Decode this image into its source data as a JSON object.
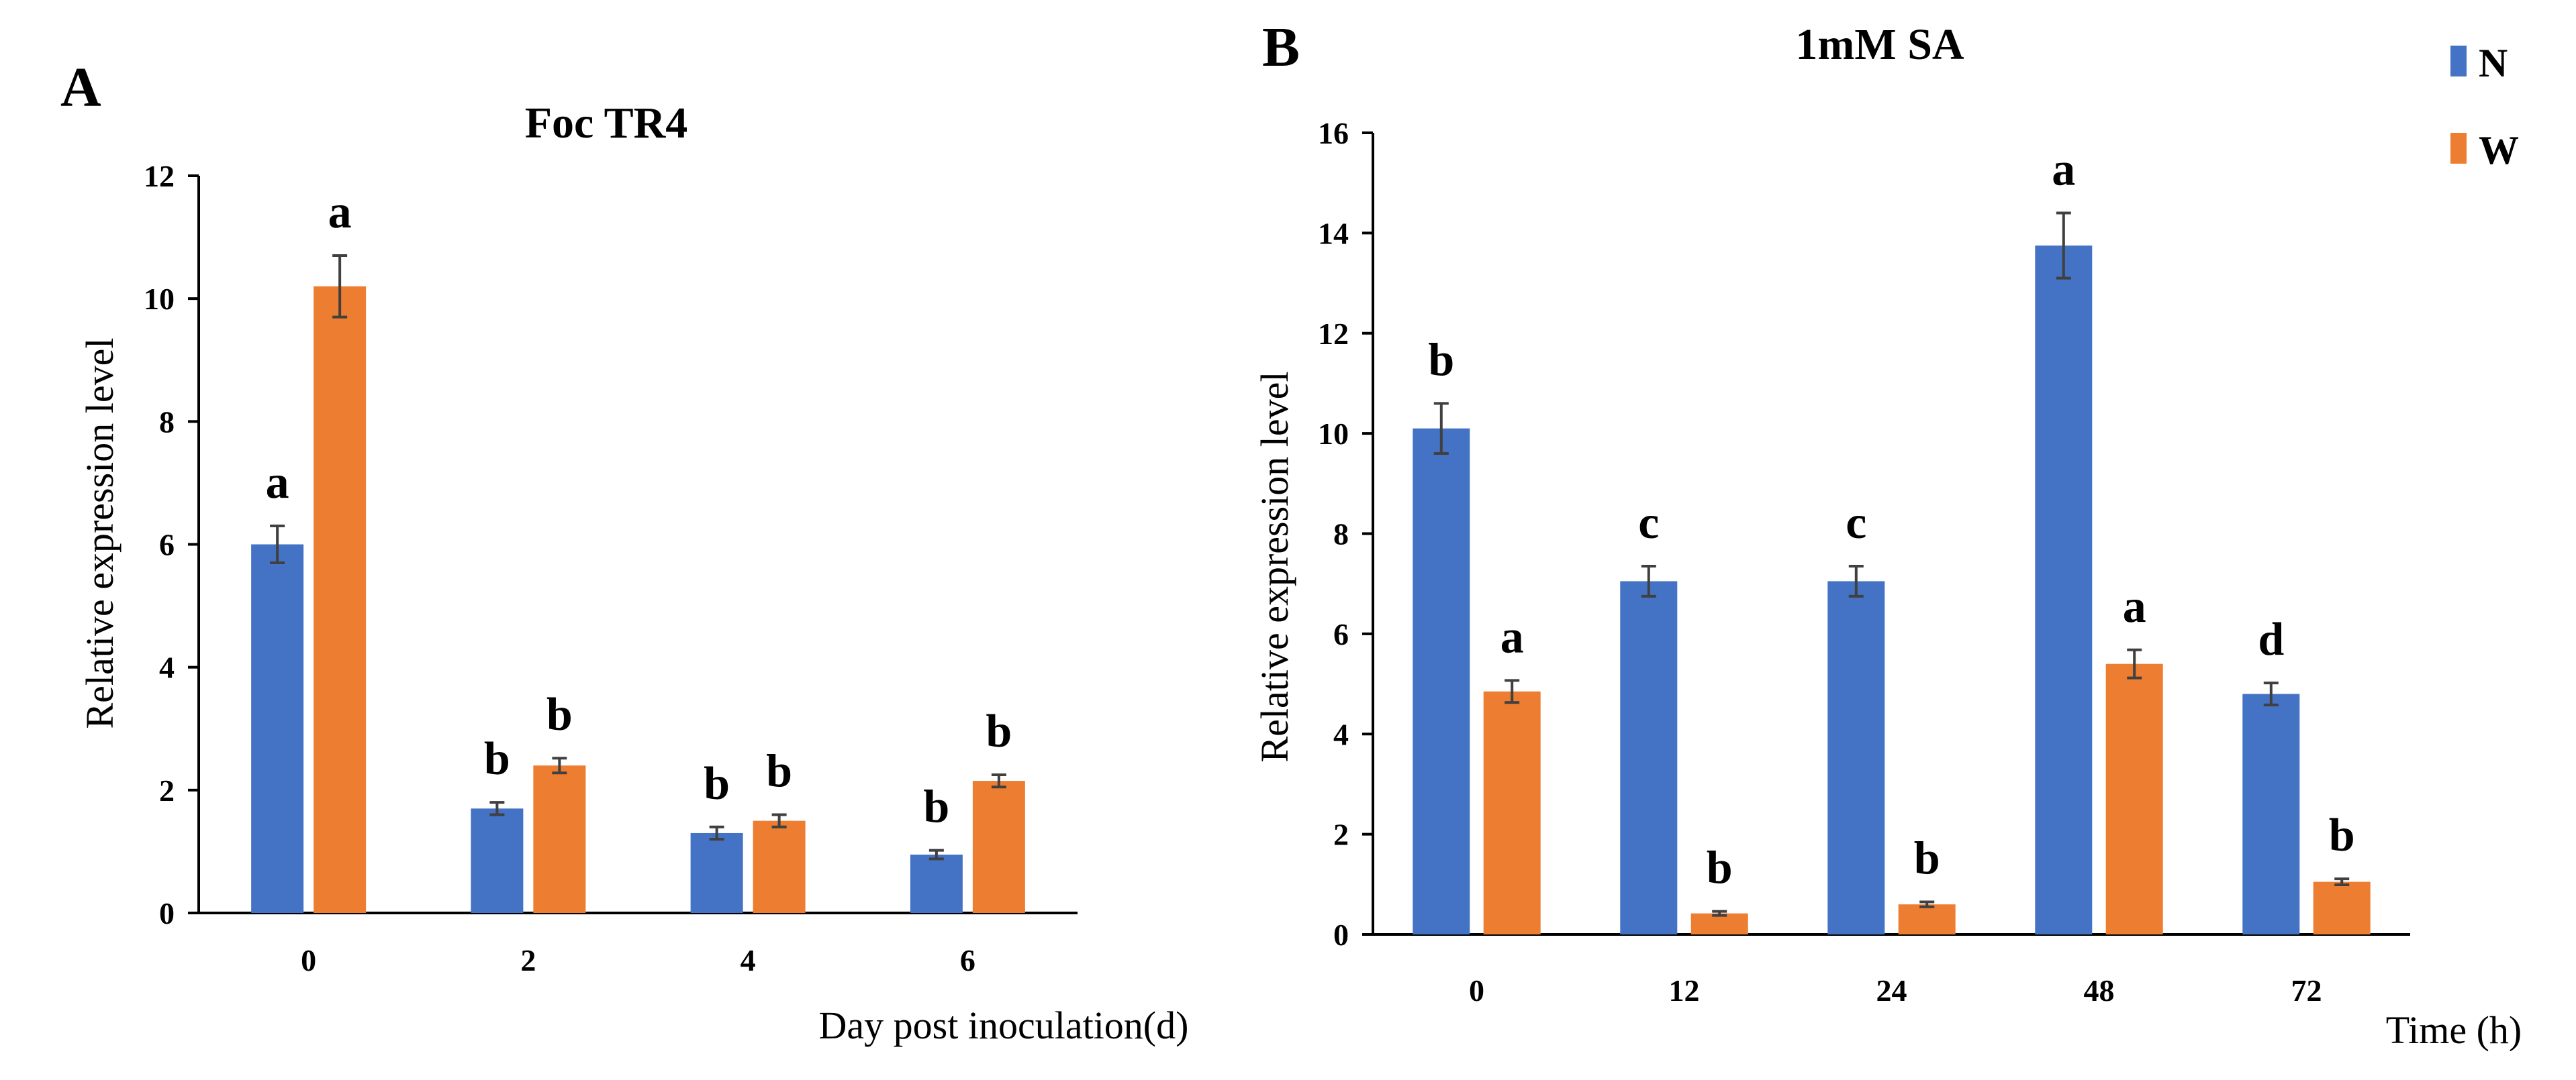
{
  "colors": {
    "N": "#4472C4",
    "W": "#ED7D31",
    "error_bar": "#404040"
  },
  "legend": {
    "placement": "top-right",
    "entries": [
      {
        "name": "N",
        "color": "#4472C4"
      },
      {
        "name": "W",
        "color": "#ED7D31"
      }
    ]
  },
  "chart_data": [
    {
      "panel": "A",
      "type": "bar",
      "title": "Foc TR4",
      "xlabel": "Day post inoculation(d)",
      "ylabel": "Relative expression level",
      "ylim": [
        0,
        12
      ],
      "yticks": [
        0,
        2,
        4,
        6,
        8,
        10,
        12
      ],
      "categories": [
        "0",
        "2",
        "4",
        "6"
      ],
      "grid": false,
      "series": [
        {
          "name": "N",
          "color": "#4472C4",
          "values": [
            6.0,
            1.7,
            1.3,
            0.95
          ],
          "errors": [
            0.3,
            0.1,
            0.1,
            0.07
          ],
          "labels": [
            "a",
            "b",
            "b",
            "b"
          ]
        },
        {
          "name": "W",
          "color": "#ED7D31",
          "values": [
            10.2,
            2.4,
            1.5,
            2.15
          ],
          "errors": [
            0.5,
            0.12,
            0.1,
            0.1
          ],
          "labels": [
            "a",
            "b",
            "b",
            "b"
          ]
        }
      ]
    },
    {
      "panel": "B",
      "type": "bar",
      "title": "1mM SA",
      "xlabel": "Time (h)",
      "ylabel": "Relative expression level",
      "ylim": [
        0,
        16
      ],
      "yticks": [
        0,
        2,
        4,
        6,
        8,
        10,
        12,
        14,
        16
      ],
      "categories": [
        "0",
        "12",
        "24",
        "48",
        "72"
      ],
      "grid": false,
      "series": [
        {
          "name": "N",
          "color": "#4472C4",
          "values": [
            10.1,
            7.05,
            7.05,
            13.75,
            4.8
          ],
          "errors": [
            0.5,
            0.3,
            0.3,
            0.65,
            0.22
          ],
          "labels": [
            "b",
            "c",
            "c",
            "a",
            "d"
          ]
        },
        {
          "name": "W",
          "color": "#ED7D31",
          "values": [
            4.85,
            0.42,
            0.6,
            5.4,
            1.05
          ],
          "errors": [
            0.22,
            0.04,
            0.05,
            0.28,
            0.06
          ],
          "labels": [
            "a",
            "b",
            "b",
            "a",
            "b"
          ]
        }
      ]
    }
  ]
}
